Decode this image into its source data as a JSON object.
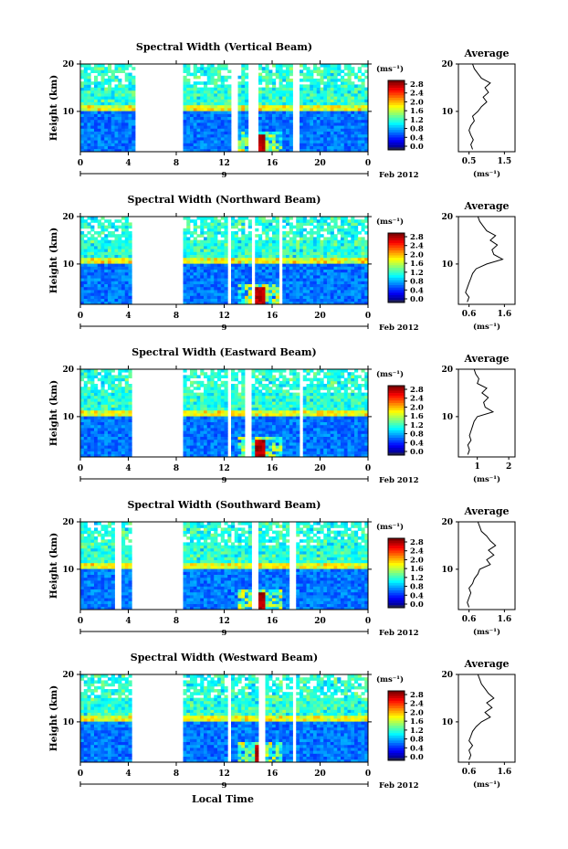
{
  "figure": {
    "xlabel": "Local Time",
    "date_label": "Feb 2012",
    "day_label": "9",
    "cb_unit": "(ms⁻¹)",
    "profile_unit": "(ms⁻¹)",
    "ylabel": "Height (km)"
  },
  "chart_data": [
    {
      "type": "heatmap",
      "title": "Spectral Width (Vertical Beam)",
      "xlabel": "Local Time",
      "ylabel": "Height (km)",
      "xticks": [
        "0",
        "4",
        "8",
        "12",
        "16",
        "20",
        "0"
      ],
      "yticks": [
        "20",
        "10"
      ],
      "xlim": [
        0,
        24
      ],
      "ylim": [
        1.5,
        20
      ],
      "colorbar": {
        "unit": "(ms⁻¹)",
        "ticks": [
          "2.8",
          "2.4",
          "2.0",
          "1.6",
          "1.2",
          "0.8",
          "0.4",
          "0.0"
        ],
        "range": [
          0,
          2.8
        ]
      },
      "gaps_hours": [
        [
          4.5,
          8.5
        ],
        [
          12.5,
          13.0
        ],
        [
          14.0,
          14.8
        ],
        [
          17.8,
          18.2
        ]
      ],
      "profile": {
        "title": "Average",
        "xticks": [
          "0.5",
          "1.5"
        ],
        "xlim": [
          0.2,
          1.8
        ],
        "unit": "(ms⁻¹)",
        "heights": [
          2,
          3,
          4,
          5,
          6,
          7,
          8,
          9,
          10,
          11,
          12,
          13,
          14,
          15,
          16,
          17,
          18,
          19,
          20
        ],
        "values": [
          0.6,
          0.55,
          0.62,
          0.55,
          0.5,
          0.55,
          0.65,
          0.6,
          0.75,
          0.85,
          1.0,
          0.9,
          1.05,
          0.95,
          1.1,
          0.85,
          0.75,
          0.65,
          0.6
        ]
      }
    },
    {
      "type": "heatmap",
      "title": "Spectral Width (Northward Beam)",
      "xlabel": "Local Time",
      "ylabel": "Height (km)",
      "xticks": [
        "0",
        "4",
        "8",
        "12",
        "16",
        "20",
        "0"
      ],
      "yticks": [
        "20",
        "10"
      ],
      "xlim": [
        0,
        24
      ],
      "ylim": [
        1.5,
        20
      ],
      "colorbar": {
        "unit": "(ms⁻¹)",
        "ticks": [
          "2.8",
          "2.4",
          "2.0",
          "1.6",
          "1.2",
          "0.8",
          "0.4",
          "0.0"
        ],
        "range": [
          0,
          2.8
        ]
      },
      "gaps_hours": [
        [
          4.4,
          8.7
        ],
        [
          12.3,
          12.7
        ],
        [
          14.2,
          14.6
        ],
        [
          16.5,
          16.9
        ]
      ],
      "profile": {
        "title": "Average",
        "xticks": [
          "0.6",
          "1.6"
        ],
        "xlim": [
          0.3,
          1.9
        ],
        "unit": "(ms⁻¹)",
        "heights": [
          2,
          3,
          4,
          5,
          6,
          7,
          8,
          9,
          10,
          11,
          12,
          13,
          14,
          15,
          16,
          17,
          18,
          19,
          20
        ],
        "values": [
          0.55,
          0.6,
          0.5,
          0.55,
          0.6,
          0.65,
          0.7,
          0.8,
          1.1,
          1.55,
          1.3,
          1.25,
          1.4,
          1.2,
          1.35,
          1.1,
          1.0,
          0.9,
          0.85
        ]
      }
    },
    {
      "type": "heatmap",
      "title": "Spectral Width (Eastward Beam)",
      "xlabel": "Local Time",
      "ylabel": "Height (km)",
      "xticks": [
        "0",
        "4",
        "8",
        "12",
        "16",
        "20",
        "0"
      ],
      "yticks": [
        "20",
        "10"
      ],
      "xlim": [
        0,
        24
      ],
      "ylim": [
        1.5,
        20
      ],
      "colorbar": {
        "unit": "(ms⁻¹)",
        "ticks": [
          "2.8",
          "2.4",
          "2.0",
          "1.6",
          "1.2",
          "0.8",
          "0.4",
          "0.0"
        ],
        "range": [
          0,
          2.8
        ]
      },
      "gaps_hours": [
        [
          4.3,
          8.6
        ],
        [
          12.2,
          12.7
        ],
        [
          13.8,
          14.4
        ],
        [
          18.2,
          18.6
        ]
      ],
      "profile": {
        "title": "Average",
        "xticks": [
          "1",
          "2"
        ],
        "xlim": [
          0.4,
          2.2
        ],
        "unit": "(ms⁻¹)",
        "heights": [
          2,
          3,
          4,
          5,
          6,
          7,
          8,
          9,
          10,
          11,
          12,
          13,
          14,
          15,
          16,
          17,
          18,
          19,
          20
        ],
        "values": [
          0.7,
          0.75,
          0.7,
          0.8,
          0.75,
          0.8,
          0.85,
          0.9,
          1.0,
          1.5,
          1.25,
          1.2,
          1.35,
          1.15,
          1.3,
          1.0,
          1.05,
          0.95,
          0.9
        ]
      }
    },
    {
      "type": "heatmap",
      "title": "Spectral Width (Southward Beam)",
      "xlabel": "Local Time",
      "ylabel": "Height (km)",
      "xticks": [
        "0",
        "4",
        "8",
        "12",
        "16",
        "20",
        "0"
      ],
      "yticks": [
        "20",
        "10"
      ],
      "xlim": [
        0,
        24
      ],
      "ylim": [
        1.5,
        20
      ],
      "colorbar": {
        "unit": "(ms⁻¹)",
        "ticks": [
          "2.8",
          "2.4",
          "2.0",
          "1.6",
          "1.2",
          "0.8",
          "0.4",
          "0.0"
        ],
        "range": [
          0,
          2.8
        ]
      },
      "gaps_hours": [
        [
          3.0,
          3.3
        ],
        [
          4.2,
          8.6
        ],
        [
          14.2,
          14.8
        ],
        [
          17.3,
          18.0
        ]
      ],
      "profile": {
        "title": "Average",
        "xticks": [
          "0.6",
          "1.6"
        ],
        "xlim": [
          0.3,
          1.9
        ],
        "unit": "(ms⁻¹)",
        "heights": [
          2,
          3,
          4,
          5,
          6,
          7,
          8,
          9,
          10,
          11,
          12,
          13,
          14,
          15,
          16,
          17,
          18,
          19,
          20
        ],
        "values": [
          0.6,
          0.55,
          0.6,
          0.65,
          0.6,
          0.7,
          0.75,
          0.85,
          0.9,
          1.2,
          1.1,
          1.3,
          1.15,
          1.35,
          1.2,
          1.1,
          0.95,
          0.9,
          0.85
        ]
      }
    },
    {
      "type": "heatmap",
      "title": "Spectral Width (Westward Beam)",
      "xlabel": "Local Time",
      "ylabel": "Height (km)",
      "xticks": [
        "0",
        "4",
        "8",
        "12",
        "16",
        "20",
        "0"
      ],
      "yticks": [
        "20",
        "10"
      ],
      "xlim": [
        0,
        24
      ],
      "ylim": [
        1.5,
        20
      ],
      "colorbar": {
        "unit": "(ms⁻¹)",
        "ticks": [
          "2.8",
          "2.4",
          "2.0",
          "1.6",
          "1.2",
          "0.8",
          "0.4",
          "0.0"
        ],
        "range": [
          0,
          2.8
        ]
      },
      "gaps_hours": [
        [
          4.3,
          8.6
        ],
        [
          12.2,
          12.6
        ],
        [
          15.0,
          15.3
        ],
        [
          17.6,
          18.0
        ]
      ],
      "profile": {
        "title": "Average",
        "xticks": [
          "0.6",
          "1.6"
        ],
        "xlim": [
          0.3,
          1.9
        ],
        "unit": "(ms⁻¹)",
        "heights": [
          2,
          3,
          4,
          5,
          6,
          7,
          8,
          9,
          10,
          11,
          12,
          13,
          14,
          15,
          16,
          17,
          18,
          19,
          20
        ],
        "values": [
          0.6,
          0.65,
          0.6,
          0.7,
          0.6,
          0.65,
          0.7,
          0.8,
          0.95,
          1.2,
          1.05,
          1.25,
          1.1,
          1.3,
          1.15,
          1.05,
          0.95,
          0.9,
          0.85
        ]
      }
    }
  ]
}
